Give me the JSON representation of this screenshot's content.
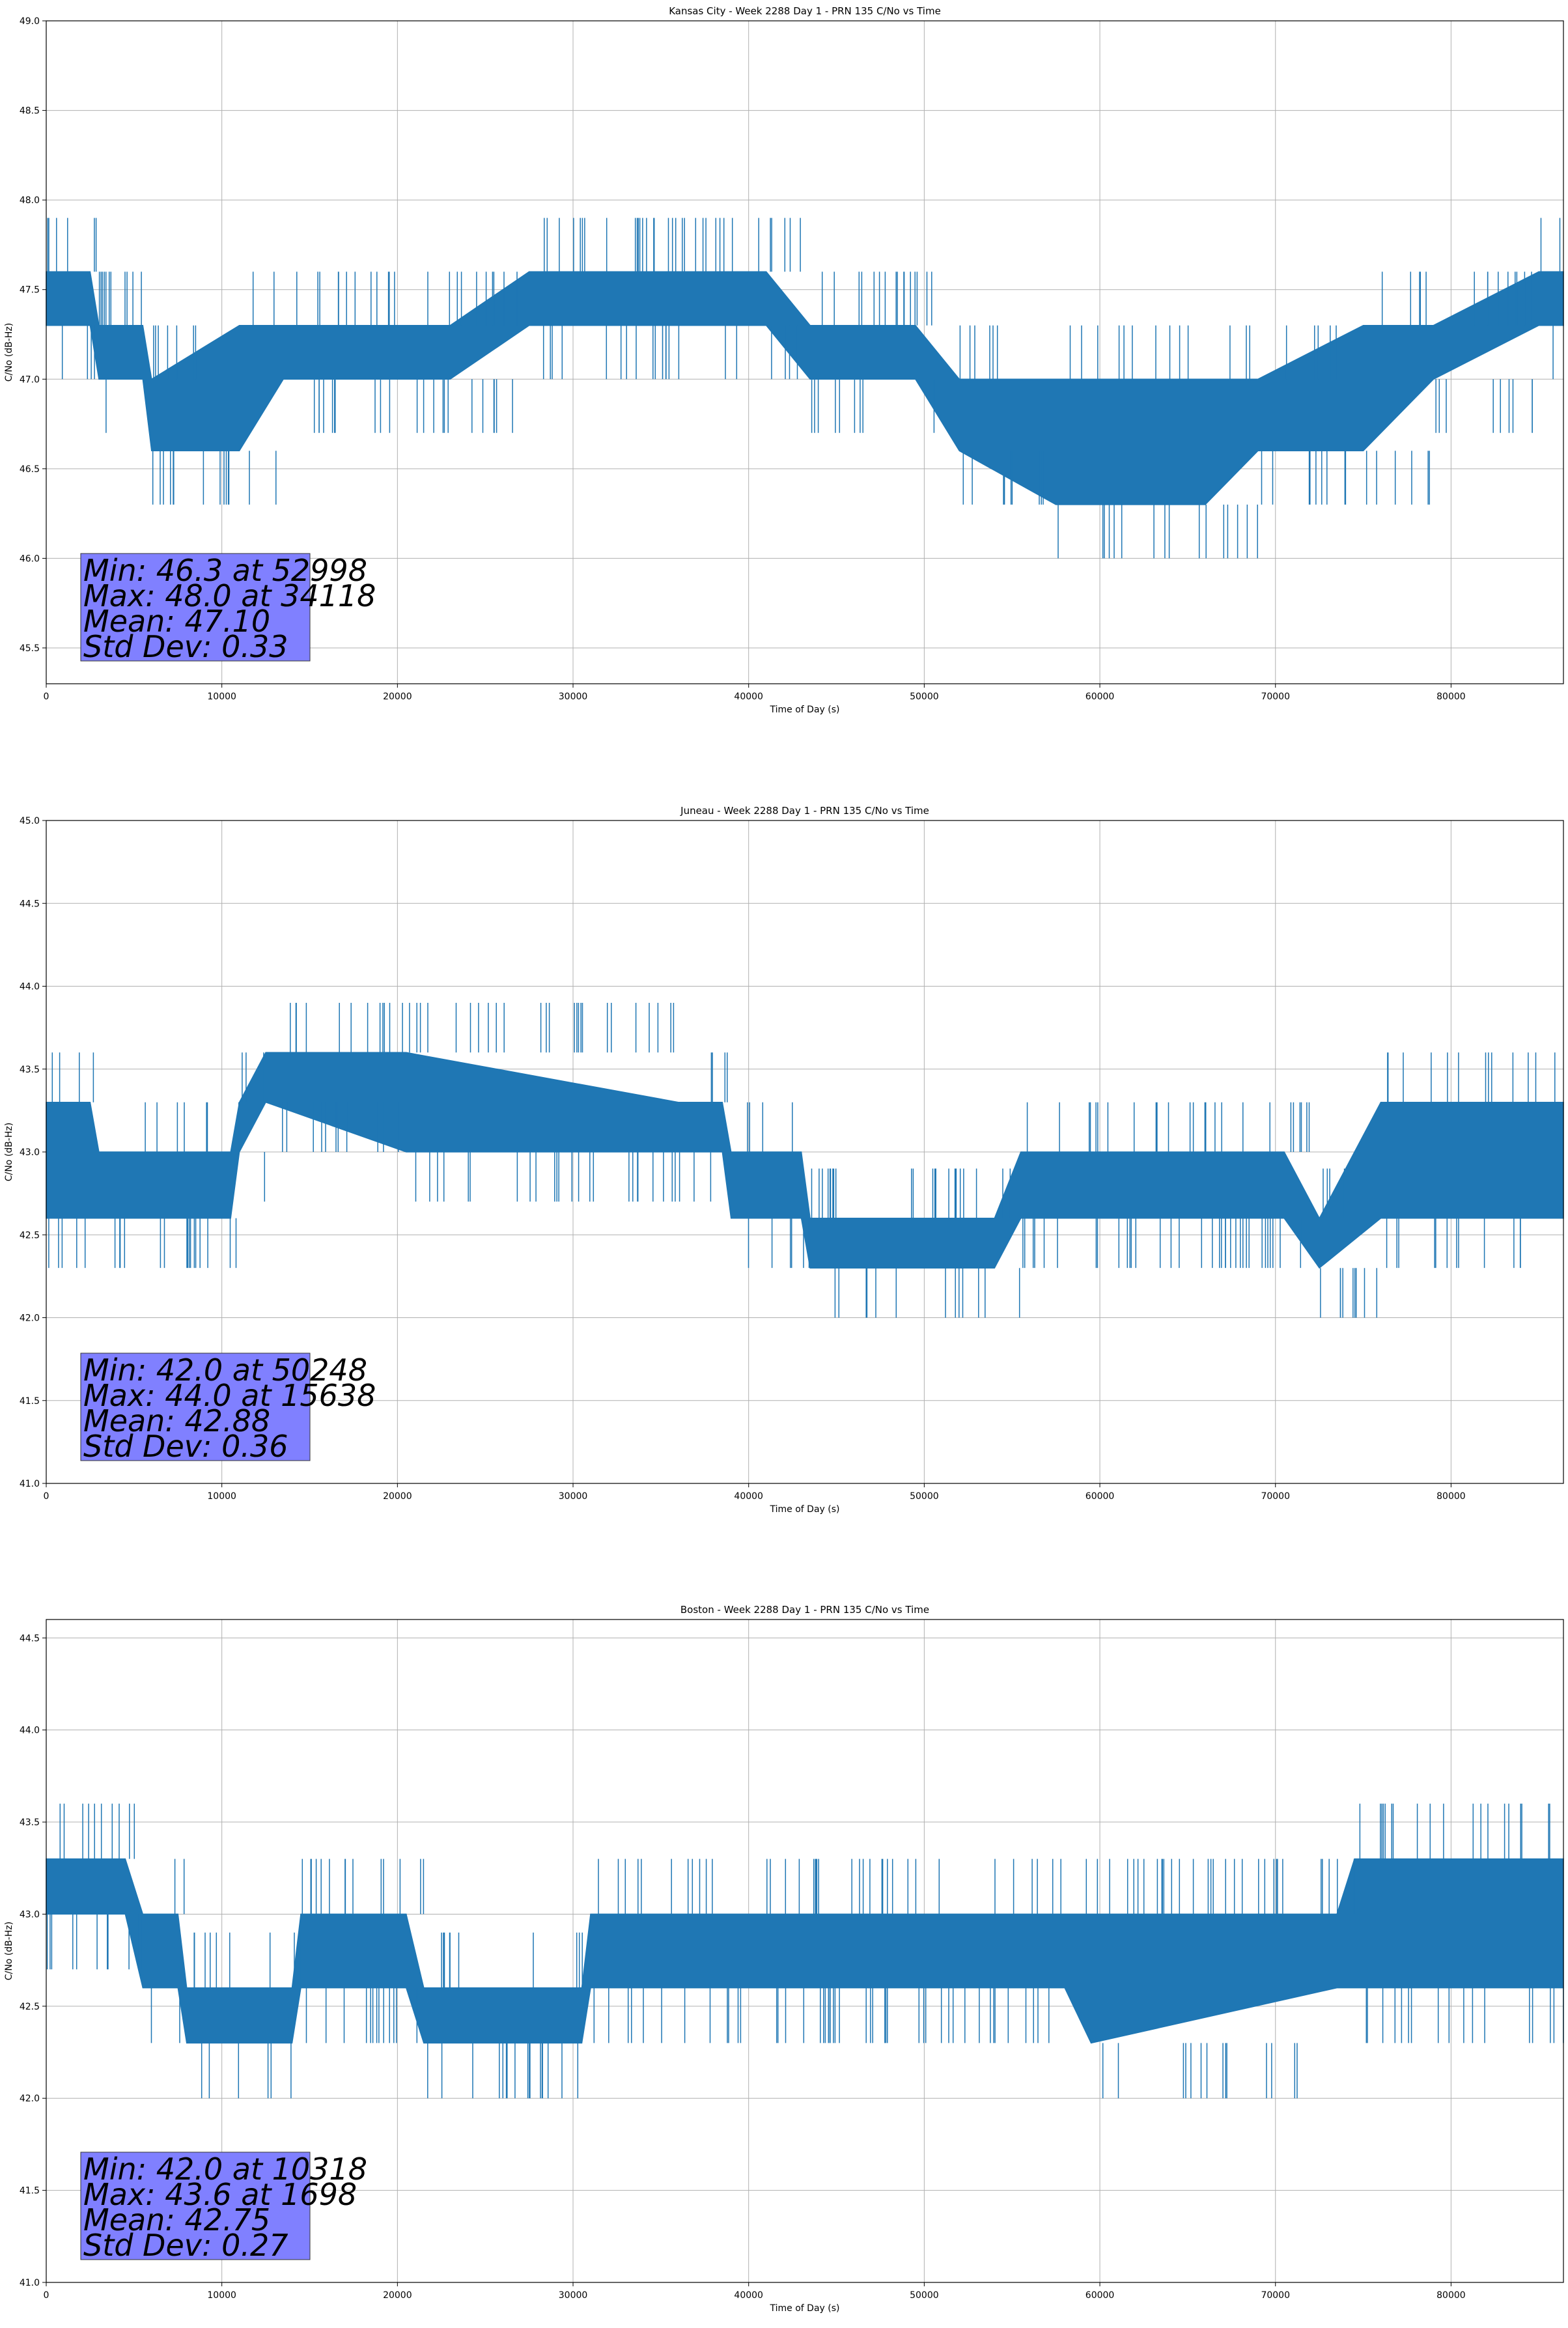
{
  "chart_data": [
    {
      "type": "line",
      "title": "Kansas City - Week 2288 Day 1 - PRN 135 C/No vs Time",
      "xlabel": "Time of Day (s)",
      "ylabel": "C/No (dB-Hz)",
      "xlim": [
        0,
        86400
      ],
      "ylim": [
        45.3,
        49.0
      ],
      "xticks": [
        0,
        10000,
        20000,
        30000,
        40000,
        50000,
        60000,
        70000,
        80000
      ],
      "yticks": [
        "45.5",
        "46.0",
        "46.5",
        "47.0",
        "47.5",
        "48.0",
        "48.5",
        "49.0"
      ],
      "grid": true,
      "line_color": "#1f77b4",
      "stats_box_color": "#8080ff",
      "stats": [
        "Min: 46.3 at 52998",
        "Max: 48.0 at 34118",
        "Mean: 47.10",
        "Std Dev: 0.33"
      ],
      "series": [
        {
          "x": [
            0,
            2500,
            3000,
            5500,
            6000,
            11000,
            13500,
            23000,
            27500,
            41000,
            43500,
            49500,
            52000,
            57500,
            66000,
            69000,
            75000,
            79000,
            85000,
            86400
          ],
          "upper": [
            47.6,
            47.6,
            47.3,
            47.3,
            47.0,
            47.3,
            47.3,
            47.3,
            47.6,
            47.6,
            47.3,
            47.3,
            47.0,
            47.0,
            47.0,
            47.0,
            47.3,
            47.3,
            47.6,
            47.6
          ],
          "lower": [
            47.3,
            47.3,
            47.0,
            47.0,
            46.6,
            46.6,
            47.0,
            47.0,
            47.3,
            47.3,
            47.0,
            47.0,
            46.6,
            46.3,
            46.3,
            46.6,
            46.6,
            47.0,
            47.3,
            47.3
          ]
        }
      ]
    },
    {
      "type": "line",
      "title": "Juneau - Week 2288 Day 1 - PRN 135 C/No vs Time",
      "xlabel": "Time of Day (s)",
      "ylabel": "C/No (dB-Hz)",
      "xlim": [
        0,
        86400
      ],
      "ylim": [
        41.0,
        45.0
      ],
      "xticks": [
        0,
        10000,
        20000,
        30000,
        40000,
        50000,
        60000,
        70000,
        80000
      ],
      "yticks": [
        "41.0",
        "41.5",
        "42.0",
        "42.5",
        "43.0",
        "43.5",
        "44.0",
        "44.5",
        "45.0"
      ],
      "grid": true,
      "line_color": "#1f77b4",
      "stats_box_color": "#8080ff",
      "stats": [
        "Min: 42.0 at 50248",
        "Max: 44.0 at 15638",
        "Mean: 42.88",
        "Std Dev: 0.36"
      ],
      "series": [
        {
          "x": [
            0,
            2500,
            3000,
            10500,
            11000,
            12500,
            20500,
            36000,
            38500,
            39000,
            43000,
            43500,
            54000,
            55500,
            70500,
            72500,
            76000,
            86400
          ],
          "upper": [
            43.3,
            43.3,
            43.0,
            43.0,
            43.3,
            43.6,
            43.6,
            43.3,
            43.3,
            43.0,
            43.0,
            42.6,
            42.6,
            43.0,
            43.0,
            42.6,
            43.3,
            43.3
          ],
          "lower": [
            42.6,
            42.6,
            42.6,
            42.6,
            43.0,
            43.3,
            43.0,
            43.0,
            43.0,
            42.6,
            42.6,
            42.3,
            42.3,
            42.6,
            42.6,
            42.3,
            42.6,
            42.6
          ]
        }
      ]
    },
    {
      "type": "line",
      "title": "Boston - Week 2288 Day 1 - PRN 135 C/No vs Time",
      "xlabel": "Time of Day (s)",
      "ylabel": "C/No (dB-Hz)",
      "xlim": [
        0,
        86400
      ],
      "ylim": [
        41.0,
        44.6
      ],
      "xticks": [
        0,
        10000,
        20000,
        30000,
        40000,
        50000,
        60000,
        70000,
        80000
      ],
      "yticks": [
        "41.0",
        "41.5",
        "42.0",
        "42.5",
        "43.0",
        "43.5",
        "44.0",
        "44.5"
      ],
      "grid": true,
      "line_color": "#1f77b4",
      "stats_box_color": "#8080ff",
      "stats": [
        "Min: 42.0 at 10318",
        "Max: 43.6 at 1698",
        "Mean: 42.75",
        "Std Dev: 0.27"
      ],
      "series": [
        {
          "x": [
            0,
            4500,
            5500,
            7500,
            8000,
            14000,
            14500,
            20500,
            21500,
            30500,
            31000,
            44000,
            45000,
            58000,
            59500,
            73500,
            74500,
            86400
          ],
          "upper": [
            43.3,
            43.3,
            43.0,
            43.0,
            42.6,
            42.6,
            43.0,
            43.0,
            42.6,
            42.6,
            43.0,
            43.0,
            43.0,
            43.0,
            43.0,
            43.0,
            43.3,
            43.3
          ],
          "lower": [
            43.0,
            43.0,
            42.6,
            42.6,
            42.3,
            42.3,
            42.6,
            42.6,
            42.3,
            42.3,
            42.6,
            42.6,
            42.6,
            42.6,
            42.3,
            42.6,
            42.6,
            42.6
          ]
        }
      ]
    }
  ]
}
